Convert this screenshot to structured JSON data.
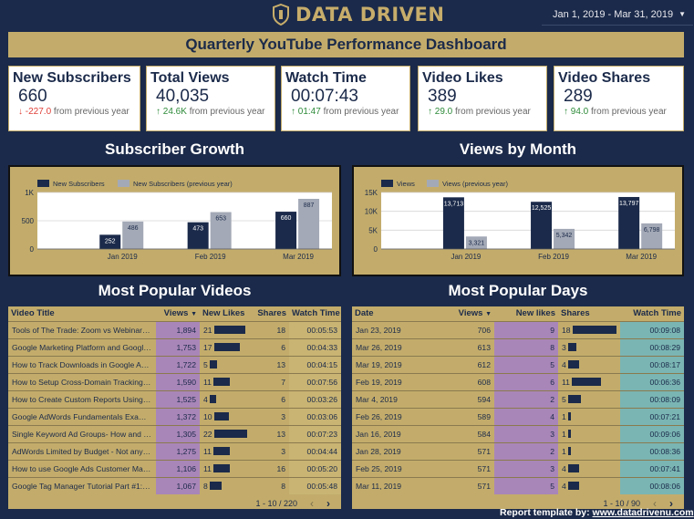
{
  "header": {
    "logo_text": "DATA DRIVEN",
    "date_range": "Jan 1, 2019 - Mar 31, 2019"
  },
  "title": "Quarterly YouTube Performance Dashboard",
  "kpis": [
    {
      "title": "New Subscribers",
      "value": "660",
      "arrow": "↓",
      "delta": "-227.0",
      "suffix": "from previous year",
      "trend": "down"
    },
    {
      "title": "Total Views",
      "value": "40,035",
      "arrow": "↑",
      "delta": "24.6K",
      "suffix": "from previous year",
      "trend": "up"
    },
    {
      "title": "Watch Time",
      "value": "00:07:43",
      "arrow": "↑",
      "delta": "01:47",
      "suffix": "from previous year",
      "trend": "up"
    },
    {
      "title": "Video Likes",
      "value": "389",
      "arrow": "↑",
      "delta": "29.0",
      "suffix": "from previous year",
      "trend": "up"
    },
    {
      "title": "Video Shares",
      "value": "289",
      "arrow": "↑",
      "delta": "94.0",
      "suffix": "from previous year",
      "trend": "up"
    }
  ],
  "sections": {
    "subscriber_growth": "Subscriber Growth",
    "views_by_month": "Views by Month",
    "popular_videos": "Most Popular Videos",
    "popular_days": "Most Popular Days"
  },
  "colors": {
    "navy": "#1b2a4a",
    "gold": "#c3ac6b",
    "gray_series": "#a3a9b6",
    "purple": "#a986b8",
    "teal": "#7ab5b3"
  },
  "chart_data": [
    {
      "type": "bar",
      "categories": [
        "Jan 2019",
        "Feb 2019",
        "Mar 2019"
      ],
      "series": [
        {
          "name": "New Subscribers",
          "values": [
            252,
            473,
            660
          ]
        },
        {
          "name": "New Subscribers (previous year)",
          "values": [
            486,
            653,
            887
          ]
        }
      ],
      "value_labels": [
        [
          "252",
          "473",
          "660"
        ],
        [
          "486",
          "653",
          "887"
        ]
      ],
      "yticks": [
        0,
        500,
        1000
      ],
      "ytick_labels": [
        "0",
        "500",
        "1K"
      ],
      "ylim": [
        0,
        1000
      ],
      "legend": "top-left",
      "grid": true
    },
    {
      "type": "bar",
      "categories": [
        "Jan 2019",
        "Feb 2019",
        "Mar 2019"
      ],
      "series": [
        {
          "name": "Views",
          "values": [
            13713,
            12525,
            13797
          ]
        },
        {
          "name": "Views (previous year)",
          "values": [
            3321,
            5342,
            6798
          ]
        }
      ],
      "value_labels": [
        [
          "13,713",
          "12,525",
          "13,797"
        ],
        [
          "3,321",
          "5,342",
          "6,798"
        ]
      ],
      "yticks": [
        0,
        5000,
        10000,
        15000
      ],
      "ytick_labels": [
        "0",
        "5K",
        "10K",
        "15K"
      ],
      "ylim": [
        0,
        15000
      ],
      "legend": "top-left",
      "grid": true
    }
  ],
  "videos_table": {
    "headers": [
      "Video Title",
      "Views",
      "New Likes",
      "Shares",
      "Watch Time"
    ],
    "sort_icon": "▼",
    "rows": [
      {
        "title": "Tools of The Trade: Zoom vs WebinarJam",
        "views": "1,894",
        "likes": "21",
        "likes_n": 21,
        "shares": "18",
        "watch": "00:05:53"
      },
      {
        "title": "Google Marketing Platform and Google Ads...",
        "views": "1,753",
        "likes": "17",
        "likes_n": 17,
        "shares": "6",
        "watch": "00:04:33"
      },
      {
        "title": "How to Track Downloads in Google Analyti...",
        "views": "1,722",
        "likes": "5",
        "likes_n": 5,
        "shares": "13",
        "watch": "00:04:15"
      },
      {
        "title": "How to Setup Cross-Domain Tracking in Go...",
        "views": "1,590",
        "likes": "11",
        "likes_n": 11,
        "shares": "7",
        "watch": "00:07:56"
      },
      {
        "title": "How to Create Custom Reports Using the G...",
        "views": "1,525",
        "likes": "4",
        "likes_n": 4,
        "shares": "6",
        "watch": "00:03:26"
      },
      {
        "title": "Google AdWords Fundamentals Exam 2018",
        "views": "1,372",
        "likes": "10",
        "likes_n": 10,
        "shares": "3",
        "watch": "00:03:06"
      },
      {
        "title": "Single Keyword Ad Groups- How and When...",
        "views": "1,305",
        "likes": "22",
        "likes_n": 22,
        "shares": "13",
        "watch": "00:07:23"
      },
      {
        "title": "AdWords Limited by Budget - Not anymore...",
        "views": "1,275",
        "likes": "11",
        "likes_n": 11,
        "shares": "3",
        "watch": "00:04:44"
      },
      {
        "title": "How to use Google Ads Customer Match",
        "views": "1,106",
        "likes": "11",
        "likes_n": 11,
        "shares": "16",
        "watch": "00:05:20"
      },
      {
        "title": "Google Tag Manager Tutorial Part #1: Do yo...",
        "views": "1,067",
        "likes": "8",
        "likes_n": 8,
        "shares": "8",
        "watch": "00:05:48"
      }
    ],
    "pager": "1 - 10 / 220",
    "likes_max": 22
  },
  "days_table": {
    "headers": [
      "Date",
      "Views",
      "New likes",
      "Shares",
      "Watch Time"
    ],
    "sort_icon": "▼",
    "rows": [
      {
        "date": "Jan 23, 2019",
        "views": "706",
        "likes": "9",
        "shares": "18",
        "shares_n": 18,
        "watch": "00:09:08"
      },
      {
        "date": "Mar 26, 2019",
        "views": "613",
        "likes": "8",
        "shares": "3",
        "shares_n": 3,
        "watch": "00:08:29"
      },
      {
        "date": "Mar 19, 2019",
        "views": "612",
        "likes": "5",
        "shares": "4",
        "shares_n": 4,
        "watch": "00:08:17"
      },
      {
        "date": "Feb 19, 2019",
        "views": "608",
        "likes": "6",
        "shares": "11",
        "shares_n": 11,
        "watch": "00:06:36"
      },
      {
        "date": "Mar 4, 2019",
        "views": "594",
        "likes": "2",
        "shares": "5",
        "shares_n": 5,
        "watch": "00:08:09"
      },
      {
        "date": "Feb 26, 2019",
        "views": "589",
        "likes": "4",
        "shares": "1",
        "shares_n": 1,
        "watch": "00:07:21"
      },
      {
        "date": "Jan 16, 2019",
        "views": "584",
        "likes": "3",
        "shares": "1",
        "shares_n": 1,
        "watch": "00:09:06"
      },
      {
        "date": "Jan 28, 2019",
        "views": "571",
        "likes": "2",
        "shares": "1",
        "shares_n": 1,
        "watch": "00:08:36"
      },
      {
        "date": "Feb 25, 2019",
        "views": "571",
        "likes": "3",
        "shares": "4",
        "shares_n": 4,
        "watch": "00:07:41"
      },
      {
        "date": "Mar 11, 2019",
        "views": "571",
        "likes": "5",
        "shares": "4",
        "shares_n": 4,
        "watch": "00:08:06"
      }
    ],
    "pager": "1 - 10 / 90",
    "shares_max": 18
  },
  "footer": {
    "label": "Report template by:",
    "link": "www.datadrivenu.com"
  }
}
